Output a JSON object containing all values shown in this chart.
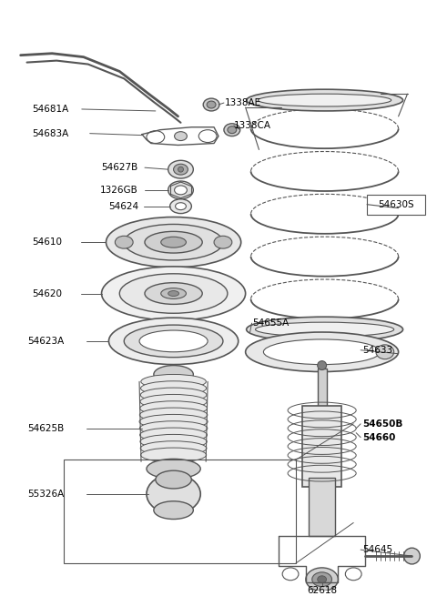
{
  "background_color": "#ffffff",
  "line_color": "#555555",
  "bold_labels": [
    "54627B",
    "54650B",
    "54660"
  ],
  "fig_w": 4.8,
  "fig_h": 6.55,
  "dpi": 100
}
